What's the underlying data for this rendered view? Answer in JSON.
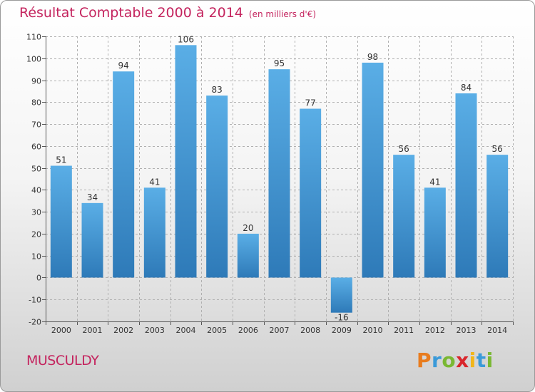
{
  "title": "Résultat Comptable 2000 à 2014",
  "unit_note": "(en milliers d'€)",
  "commune": "MUSCULDY",
  "logo": {
    "text": "Proxiti",
    "letters": [
      "P",
      "r",
      "o",
      "x",
      "i",
      "t",
      "i"
    ],
    "colors": [
      "#e87c1e",
      "#3a9ad9",
      "#7ab833",
      "#d9262c",
      "#f2b61a",
      "#3a9ad9",
      "#7ab833"
    ]
  },
  "colors": {
    "title": "#c4245e",
    "bar_light": "#5aaee6",
    "bar_dark": "#2e7ab8",
    "grid": "#b0b0b0"
  },
  "chart_data": {
    "type": "bar",
    "title": "Résultat Comptable 2000 à 2014",
    "ylabel": "en milliers d'€",
    "xlabel": "",
    "categories": [
      "2000",
      "2001",
      "2002",
      "2003",
      "2004",
      "2005",
      "2006",
      "2007",
      "2008",
      "2009",
      "2010",
      "2011",
      "2012",
      "2013",
      "2014"
    ],
    "values": [
      51,
      34,
      94,
      41,
      106,
      83,
      20,
      95,
      77,
      -16,
      98,
      56,
      41,
      84,
      56
    ],
    "ylim": [
      -20,
      110
    ],
    "yticks": [
      -20,
      -10,
      0,
      10,
      20,
      30,
      40,
      50,
      60,
      70,
      80,
      90,
      100,
      110
    ],
    "ytick_labels": [
      "-20",
      "-10",
      "0",
      "10",
      "20",
      "30",
      "40",
      "50",
      "60",
      "70",
      "80",
      "90",
      "100",
      "110"
    ],
    "grid": true
  }
}
